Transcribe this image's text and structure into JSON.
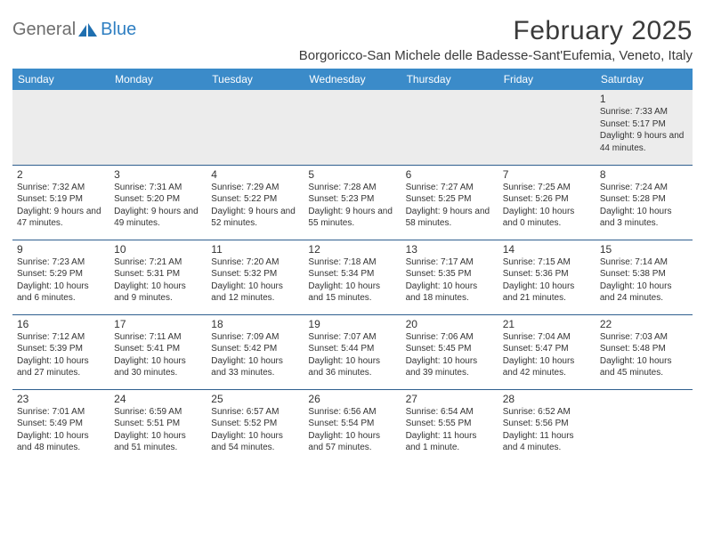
{
  "brand": {
    "part1": "General",
    "part2": "Blue"
  },
  "title": "February 2025",
  "location": "Borgoricco-San Michele delle Badesse-Sant'Eufemia, Veneto, Italy",
  "colors": {
    "header_bg": "#3b8bc9",
    "header_text": "#ffffff",
    "row_divider": "#2f5f8f",
    "first_row_bg": "#ececec",
    "logo_gray": "#6e6e6e",
    "logo_blue": "#2f7fc2"
  },
  "dayHeaders": [
    "Sunday",
    "Monday",
    "Tuesday",
    "Wednesday",
    "Thursday",
    "Friday",
    "Saturday"
  ],
  "weeks": [
    [
      null,
      null,
      null,
      null,
      null,
      null,
      {
        "n": "1",
        "sr": "7:33 AM",
        "ss": "5:17 PM",
        "dl": "9 hours and 44 minutes."
      }
    ],
    [
      {
        "n": "2",
        "sr": "7:32 AM",
        "ss": "5:19 PM",
        "dl": "9 hours and 47 minutes."
      },
      {
        "n": "3",
        "sr": "7:31 AM",
        "ss": "5:20 PM",
        "dl": "9 hours and 49 minutes."
      },
      {
        "n": "4",
        "sr": "7:29 AM",
        "ss": "5:22 PM",
        "dl": "9 hours and 52 minutes."
      },
      {
        "n": "5",
        "sr": "7:28 AM",
        "ss": "5:23 PM",
        "dl": "9 hours and 55 minutes."
      },
      {
        "n": "6",
        "sr": "7:27 AM",
        "ss": "5:25 PM",
        "dl": "9 hours and 58 minutes."
      },
      {
        "n": "7",
        "sr": "7:25 AM",
        "ss": "5:26 PM",
        "dl": "10 hours and 0 minutes."
      },
      {
        "n": "8",
        "sr": "7:24 AM",
        "ss": "5:28 PM",
        "dl": "10 hours and 3 minutes."
      }
    ],
    [
      {
        "n": "9",
        "sr": "7:23 AM",
        "ss": "5:29 PM",
        "dl": "10 hours and 6 minutes."
      },
      {
        "n": "10",
        "sr": "7:21 AM",
        "ss": "5:31 PM",
        "dl": "10 hours and 9 minutes."
      },
      {
        "n": "11",
        "sr": "7:20 AM",
        "ss": "5:32 PM",
        "dl": "10 hours and 12 minutes."
      },
      {
        "n": "12",
        "sr": "7:18 AM",
        "ss": "5:34 PM",
        "dl": "10 hours and 15 minutes."
      },
      {
        "n": "13",
        "sr": "7:17 AM",
        "ss": "5:35 PM",
        "dl": "10 hours and 18 minutes."
      },
      {
        "n": "14",
        "sr": "7:15 AM",
        "ss": "5:36 PM",
        "dl": "10 hours and 21 minutes."
      },
      {
        "n": "15",
        "sr": "7:14 AM",
        "ss": "5:38 PM",
        "dl": "10 hours and 24 minutes."
      }
    ],
    [
      {
        "n": "16",
        "sr": "7:12 AM",
        "ss": "5:39 PM",
        "dl": "10 hours and 27 minutes."
      },
      {
        "n": "17",
        "sr": "7:11 AM",
        "ss": "5:41 PM",
        "dl": "10 hours and 30 minutes."
      },
      {
        "n": "18",
        "sr": "7:09 AM",
        "ss": "5:42 PM",
        "dl": "10 hours and 33 minutes."
      },
      {
        "n": "19",
        "sr": "7:07 AM",
        "ss": "5:44 PM",
        "dl": "10 hours and 36 minutes."
      },
      {
        "n": "20",
        "sr": "7:06 AM",
        "ss": "5:45 PM",
        "dl": "10 hours and 39 minutes."
      },
      {
        "n": "21",
        "sr": "7:04 AM",
        "ss": "5:47 PM",
        "dl": "10 hours and 42 minutes."
      },
      {
        "n": "22",
        "sr": "7:03 AM",
        "ss": "5:48 PM",
        "dl": "10 hours and 45 minutes."
      }
    ],
    [
      {
        "n": "23",
        "sr": "7:01 AM",
        "ss": "5:49 PM",
        "dl": "10 hours and 48 minutes."
      },
      {
        "n": "24",
        "sr": "6:59 AM",
        "ss": "5:51 PM",
        "dl": "10 hours and 51 minutes."
      },
      {
        "n": "25",
        "sr": "6:57 AM",
        "ss": "5:52 PM",
        "dl": "10 hours and 54 minutes."
      },
      {
        "n": "26",
        "sr": "6:56 AM",
        "ss": "5:54 PM",
        "dl": "10 hours and 57 minutes."
      },
      {
        "n": "27",
        "sr": "6:54 AM",
        "ss": "5:55 PM",
        "dl": "11 hours and 1 minute."
      },
      {
        "n": "28",
        "sr": "6:52 AM",
        "ss": "5:56 PM",
        "dl": "11 hours and 4 minutes."
      },
      null
    ]
  ],
  "labels": {
    "sunrise": "Sunrise:",
    "sunset": "Sunset:",
    "daylight": "Daylight:"
  }
}
